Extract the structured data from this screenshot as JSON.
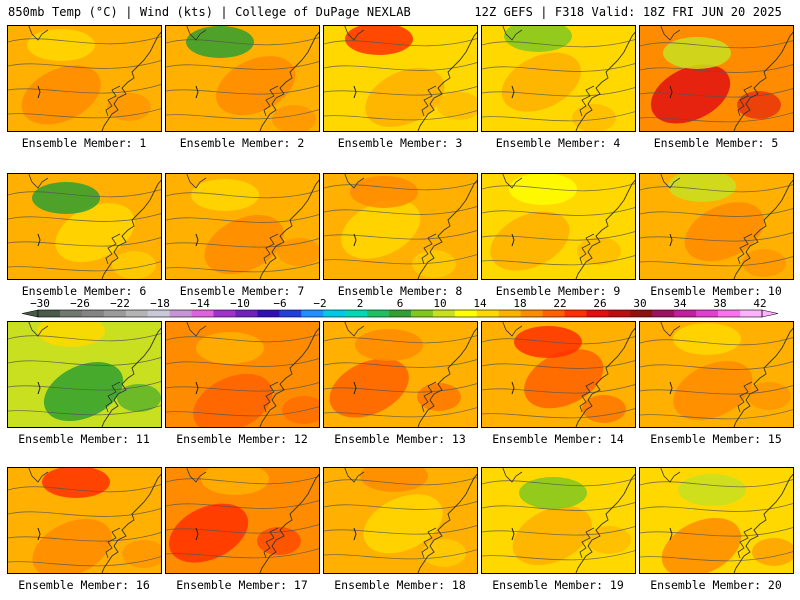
{
  "header": {
    "left": "850mb Temp (°C) | Wind (kts) | College of DuPage NEXLAB",
    "right": "12Z GEFS | F318 Valid: 18Z FRI JUN 20 2025"
  },
  "panels": [
    {
      "label": "Ensemble Member: 1"
    },
    {
      "label": "Ensemble Member: 2"
    },
    {
      "label": "Ensemble Member: 3"
    },
    {
      "label": "Ensemble Member: 4"
    },
    {
      "label": "Ensemble Member: 5"
    },
    {
      "label": "Ensemble Member: 6"
    },
    {
      "label": "Ensemble Member: 7"
    },
    {
      "label": "Ensemble Member: 8"
    },
    {
      "label": "Ensemble Member: 9"
    },
    {
      "label": "Ensemble Member: 10"
    },
    {
      "label": "Ensemble Member: 11"
    },
    {
      "label": "Ensemble Member: 12"
    },
    {
      "label": "Ensemble Member: 13"
    },
    {
      "label": "Ensemble Member: 14"
    },
    {
      "label": "Ensemble Member: 15"
    },
    {
      "label": "Ensemble Member: 16"
    },
    {
      "label": "Ensemble Member: 17"
    },
    {
      "label": "Ensemble Member: 18"
    },
    {
      "label": "Ensemble Member: 19"
    },
    {
      "label": "Ensemble Member: 20"
    }
  ],
  "colorbar": {
    "tick_labels": [
      "-30",
      "-26",
      "-22",
      "-18",
      "-14",
      "-10",
      "-6",
      "-2",
      "2",
      "6",
      "10",
      "14",
      "18",
      "22",
      "26",
      "30",
      "34",
      "38",
      "42"
    ],
    "colors": [
      "#4a5a4a",
      "#707870",
      "#848484",
      "#9a9a9a",
      "#b4b4b4",
      "#c8c8d8",
      "#c894d8",
      "#e060e0",
      "#a030d0",
      "#7020c0",
      "#3010b0",
      "#2040d8",
      "#1e90ff",
      "#00c8e8",
      "#00d8b8",
      "#20c060",
      "#30a030",
      "#80c820",
      "#c8e020",
      "#ffff00",
      "#ffd800",
      "#ffb000",
      "#ff8c00",
      "#ff6000",
      "#ff3000",
      "#e01010",
      "#b81010",
      "#901010",
      "#a01060",
      "#c020a0",
      "#e040d0",
      "#ff70f0",
      "#ffb0ff"
    ]
  }
}
